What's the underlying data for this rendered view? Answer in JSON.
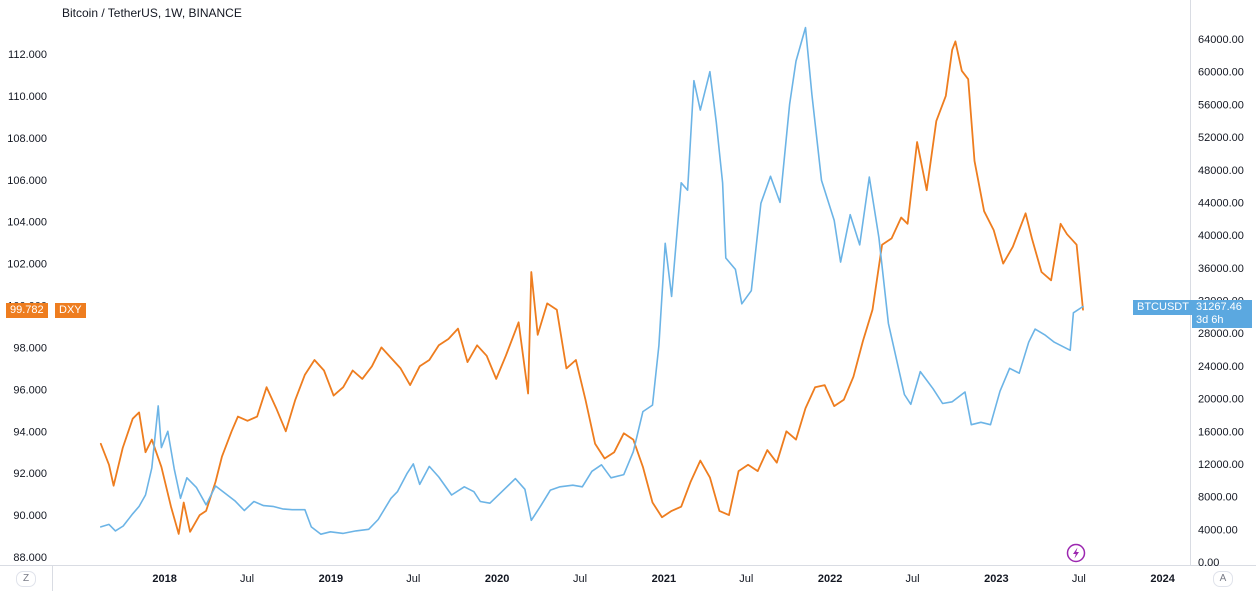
{
  "header": {
    "title": "Bitcoin / TetherUS, 1W, BINANCE"
  },
  "controls": {
    "left_button": "Z",
    "right_button": "A",
    "flash_icon": "lightning-icon"
  },
  "colors": {
    "btc": "#6cb4e6",
    "dxy": "#ee7d1f",
    "btc_tag": "#5ba8e0",
    "dxy_tag": "#ee7d1f",
    "axis": "#787b86",
    "grid_border": "#d9dce3"
  },
  "tags": {
    "dxy_value": "99.782",
    "dxy_name": "DXY",
    "btc_name": "BTCUSDT",
    "btc_value": "31267.46",
    "btc_countdown": "3d 6h"
  },
  "chart_data": {
    "type": "line",
    "xlabel": "",
    "ylabel": "",
    "x_tick_labels": [
      "2018",
      "Jul",
      "2019",
      "Jul",
      "2020",
      "Jul",
      "2021",
      "Jul",
      "2022",
      "Jul",
      "2023",
      "Jul",
      "2024"
    ],
    "x_tick_dates": [
      "2018-01-01",
      "2018-07-01",
      "2019-01-01",
      "2019-07-01",
      "2020-01-01",
      "2020-07-01",
      "2021-01-01",
      "2021-07-01",
      "2022-01-01",
      "2022-07-01",
      "2023-01-01",
      "2023-07-01",
      "2024-01-01"
    ],
    "xlim": [
      "2017-05-01",
      "2024-03-01"
    ],
    "left_axis": {
      "ylim": [
        88,
        113.4
      ],
      "ticks": [
        "88.000",
        "90.000",
        "92.000",
        "94.000",
        "96.000",
        "98.000",
        "100.000",
        "102.000",
        "104.000",
        "106.000",
        "108.000",
        "110.000",
        "112.000"
      ]
    },
    "right_axis": {
      "ylim": [
        0,
        66000
      ],
      "ticks": [
        "0.00",
        "4000.00",
        "8000.00",
        "12000.00",
        "16000.00",
        "20000.00",
        "24000.00",
        "28000.00",
        "32000.00",
        "36000.00",
        "40000.00",
        "44000.00",
        "48000.00",
        "52000.00",
        "56000.00",
        "60000.00",
        "64000.00"
      ]
    },
    "series": [
      {
        "name": "DXY",
        "axis": "left",
        "points": [
          [
            "2017-08-14",
            93.4
          ],
          [
            "2017-09-01",
            92.4
          ],
          [
            "2017-09-11",
            91.4
          ],
          [
            "2017-10-01",
            93.2
          ],
          [
            "2017-10-23",
            94.6
          ],
          [
            "2017-11-06",
            94.9
          ],
          [
            "2017-11-20",
            93.0
          ],
          [
            "2017-12-04",
            93.6
          ],
          [
            "2017-12-25",
            92.3
          ],
          [
            "2018-01-15",
            90.4
          ],
          [
            "2018-02-01",
            89.1
          ],
          [
            "2018-02-12",
            90.6
          ],
          [
            "2018-02-26",
            89.2
          ],
          [
            "2018-03-19",
            90.0
          ],
          [
            "2018-04-02",
            90.2
          ],
          [
            "2018-04-23",
            91.6
          ],
          [
            "2018-05-07",
            92.8
          ],
          [
            "2018-05-28",
            94.0
          ],
          [
            "2018-06-11",
            94.7
          ],
          [
            "2018-07-02",
            94.5
          ],
          [
            "2018-07-23",
            94.7
          ],
          [
            "2018-08-13",
            96.1
          ],
          [
            "2018-09-03",
            95.1
          ],
          [
            "2018-09-24",
            94.0
          ],
          [
            "2018-10-15",
            95.5
          ],
          [
            "2018-11-05",
            96.7
          ],
          [
            "2018-11-26",
            97.4
          ],
          [
            "2018-12-17",
            96.9
          ],
          [
            "2019-01-07",
            95.7
          ],
          [
            "2019-01-28",
            96.1
          ],
          [
            "2019-02-18",
            96.9
          ],
          [
            "2019-03-11",
            96.5
          ],
          [
            "2019-04-01",
            97.1
          ],
          [
            "2019-04-22",
            98.0
          ],
          [
            "2019-05-13",
            97.5
          ],
          [
            "2019-06-03",
            97.0
          ],
          [
            "2019-06-24",
            96.2
          ],
          [
            "2019-07-15",
            97.1
          ],
          [
            "2019-08-05",
            97.4
          ],
          [
            "2019-08-26",
            98.1
          ],
          [
            "2019-09-16",
            98.4
          ],
          [
            "2019-10-07",
            98.9
          ],
          [
            "2019-10-28",
            97.3
          ],
          [
            "2019-11-18",
            98.1
          ],
          [
            "2019-12-09",
            97.6
          ],
          [
            "2019-12-30",
            96.5
          ],
          [
            "2020-01-20",
            97.6
          ],
          [
            "2020-02-17",
            99.2
          ],
          [
            "2020-03-09",
            95.8
          ],
          [
            "2020-03-16",
            101.6
          ],
          [
            "2020-03-30",
            98.6
          ],
          [
            "2020-04-20",
            100.1
          ],
          [
            "2020-05-11",
            99.8
          ],
          [
            "2020-06-01",
            97.0
          ],
          [
            "2020-06-22",
            97.4
          ],
          [
            "2020-07-13",
            95.5
          ],
          [
            "2020-08-03",
            93.4
          ],
          [
            "2020-08-24",
            92.7
          ],
          [
            "2020-09-14",
            93.0
          ],
          [
            "2020-10-05",
            93.9
          ],
          [
            "2020-10-26",
            93.6
          ],
          [
            "2020-11-16",
            92.3
          ],
          [
            "2020-12-07",
            90.6
          ],
          [
            "2020-12-28",
            89.9
          ],
          [
            "2021-01-18",
            90.2
          ],
          [
            "2021-02-08",
            90.4
          ],
          [
            "2021-03-01",
            91.6
          ],
          [
            "2021-03-22",
            92.6
          ],
          [
            "2021-04-12",
            91.8
          ],
          [
            "2021-05-03",
            90.2
          ],
          [
            "2021-05-24",
            90.0
          ],
          [
            "2021-06-14",
            92.1
          ],
          [
            "2021-07-05",
            92.4
          ],
          [
            "2021-07-26",
            92.1
          ],
          [
            "2021-08-16",
            93.1
          ],
          [
            "2021-09-06",
            92.5
          ],
          [
            "2021-09-27",
            94.0
          ],
          [
            "2021-10-18",
            93.6
          ],
          [
            "2021-11-08",
            95.1
          ],
          [
            "2021-11-29",
            96.1
          ],
          [
            "2021-12-20",
            96.2
          ],
          [
            "2022-01-10",
            95.2
          ],
          [
            "2022-01-31",
            95.5
          ],
          [
            "2022-02-21",
            96.6
          ],
          [
            "2022-03-14",
            98.3
          ],
          [
            "2022-04-04",
            99.8
          ],
          [
            "2022-04-25",
            102.9
          ],
          [
            "2022-05-16",
            103.2
          ],
          [
            "2022-06-06",
            104.2
          ],
          [
            "2022-06-20",
            103.9
          ],
          [
            "2022-07-11",
            107.8
          ],
          [
            "2022-08-01",
            105.5
          ],
          [
            "2022-08-22",
            108.8
          ],
          [
            "2022-09-12",
            110.0
          ],
          [
            "2022-09-26",
            112.2
          ],
          [
            "2022-10-03",
            112.6
          ],
          [
            "2022-10-17",
            111.2
          ],
          [
            "2022-10-31",
            110.8
          ],
          [
            "2022-11-14",
            106.9
          ],
          [
            "2022-12-05",
            104.5
          ],
          [
            "2022-12-26",
            103.6
          ],
          [
            "2023-01-16",
            102.0
          ],
          [
            "2023-02-06",
            102.8
          ],
          [
            "2023-03-06",
            104.4
          ],
          [
            "2023-03-20",
            103.2
          ],
          [
            "2023-04-10",
            101.6
          ],
          [
            "2023-05-01",
            101.2
          ],
          [
            "2023-05-22",
            103.9
          ],
          [
            "2023-06-05",
            103.4
          ],
          [
            "2023-06-26",
            102.9
          ],
          [
            "2023-07-10",
            99.8
          ]
        ]
      },
      {
        "name": "BTCUSDT",
        "axis": "right",
        "points": [
          [
            "2017-08-14",
            4300
          ],
          [
            "2017-09-01",
            4600
          ],
          [
            "2017-09-15",
            3800
          ],
          [
            "2017-10-02",
            4400
          ],
          [
            "2017-10-23",
            5900
          ],
          [
            "2017-11-06",
            6800
          ],
          [
            "2017-11-20",
            8200
          ],
          [
            "2017-12-04",
            11500
          ],
          [
            "2017-12-18",
            19100
          ],
          [
            "2017-12-25",
            14000
          ],
          [
            "2018-01-08",
            16000
          ],
          [
            "2018-01-22",
            11400
          ],
          [
            "2018-02-05",
            7800
          ],
          [
            "2018-02-19",
            10300
          ],
          [
            "2018-03-12",
            9100
          ],
          [
            "2018-04-02",
            7000
          ],
          [
            "2018-04-23",
            9300
          ],
          [
            "2018-05-14",
            8400
          ],
          [
            "2018-06-04",
            7500
          ],
          [
            "2018-06-25",
            6300
          ],
          [
            "2018-07-16",
            7400
          ],
          [
            "2018-08-06",
            6900
          ],
          [
            "2018-08-27",
            6800
          ],
          [
            "2018-09-17",
            6500
          ],
          [
            "2018-10-08",
            6400
          ],
          [
            "2018-11-05",
            6400
          ],
          [
            "2018-11-19",
            4300
          ],
          [
            "2018-12-10",
            3400
          ],
          [
            "2018-12-31",
            3700
          ],
          [
            "2019-01-28",
            3500
          ],
          [
            "2019-02-25",
            3800
          ],
          [
            "2019-03-25",
            4000
          ],
          [
            "2019-04-15",
            5200
          ],
          [
            "2019-05-13",
            7800
          ],
          [
            "2019-05-27",
            8600
          ],
          [
            "2019-06-17",
            10800
          ],
          [
            "2019-07-01",
            12000
          ],
          [
            "2019-07-15",
            9500
          ],
          [
            "2019-08-05",
            11700
          ],
          [
            "2019-08-26",
            10400
          ],
          [
            "2019-09-23",
            8200
          ],
          [
            "2019-10-21",
            9200
          ],
          [
            "2019-11-11",
            8600
          ],
          [
            "2019-11-25",
            7400
          ],
          [
            "2019-12-16",
            7200
          ],
          [
            "2020-01-13",
            8700
          ],
          [
            "2020-02-10",
            10200
          ],
          [
            "2020-03-02",
            8900
          ],
          [
            "2020-03-16",
            5100
          ],
          [
            "2020-04-06",
            6900
          ],
          [
            "2020-04-27",
            8800
          ],
          [
            "2020-05-18",
            9200
          ],
          [
            "2020-06-15",
            9400
          ],
          [
            "2020-07-06",
            9200
          ],
          [
            "2020-07-27",
            11100
          ],
          [
            "2020-08-17",
            11900
          ],
          [
            "2020-09-07",
            10300
          ],
          [
            "2020-10-05",
            10700
          ],
          [
            "2020-10-26",
            13500
          ],
          [
            "2020-11-16",
            18400
          ],
          [
            "2020-12-07",
            19200
          ],
          [
            "2020-12-21",
            26500
          ],
          [
            "2021-01-04",
            39000
          ],
          [
            "2021-01-18",
            32500
          ],
          [
            "2021-02-08",
            46400
          ],
          [
            "2021-02-22",
            45500
          ],
          [
            "2021-03-08",
            58900
          ],
          [
            "2021-03-22",
            55300
          ],
          [
            "2021-04-12",
            60000
          ],
          [
            "2021-04-26",
            53800
          ],
          [
            "2021-05-10",
            46400
          ],
          [
            "2021-05-17",
            37200
          ],
          [
            "2021-06-07",
            35800
          ],
          [
            "2021-06-21",
            31600
          ],
          [
            "2021-07-12",
            33200
          ],
          [
            "2021-08-02",
            43900
          ],
          [
            "2021-08-23",
            47200
          ],
          [
            "2021-09-13",
            44000
          ],
          [
            "2021-10-04",
            56000
          ],
          [
            "2021-10-18",
            61300
          ],
          [
            "2021-11-08",
            65400
          ],
          [
            "2021-11-22",
            57200
          ],
          [
            "2021-12-13",
            46700
          ],
          [
            "2022-01-10",
            41800
          ],
          [
            "2022-01-24",
            36700
          ],
          [
            "2022-02-14",
            42500
          ],
          [
            "2022-03-07",
            38800
          ],
          [
            "2022-03-28",
            47100
          ],
          [
            "2022-04-18",
            39700
          ],
          [
            "2022-05-09",
            29200
          ],
          [
            "2022-06-13",
            20500
          ],
          [
            "2022-06-27",
            19300
          ],
          [
            "2022-07-18",
            23300
          ],
          [
            "2022-08-15",
            21200
          ],
          [
            "2022-09-05",
            19400
          ],
          [
            "2022-09-26",
            19600
          ],
          [
            "2022-10-24",
            20800
          ],
          [
            "2022-11-07",
            16800
          ],
          [
            "2022-11-28",
            17100
          ],
          [
            "2022-12-19",
            16800
          ],
          [
            "2023-01-09",
            20900
          ],
          [
            "2023-01-30",
            23700
          ],
          [
            "2023-02-20",
            23100
          ],
          [
            "2023-03-13",
            26900
          ],
          [
            "2023-03-27",
            28500
          ],
          [
            "2023-04-17",
            27800
          ],
          [
            "2023-05-08",
            26900
          ],
          [
            "2023-06-12",
            25900
          ],
          [
            "2023-06-19",
            30500
          ],
          [
            "2023-07-10",
            31267
          ]
        ]
      }
    ]
  }
}
